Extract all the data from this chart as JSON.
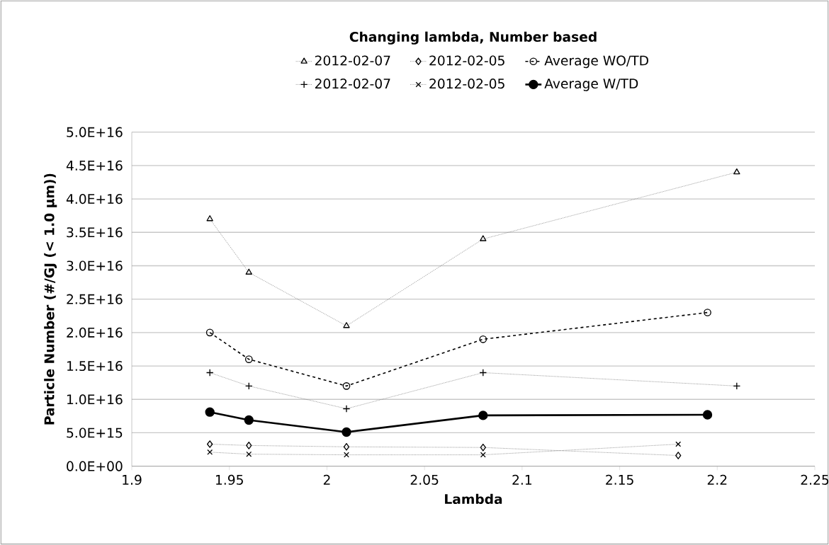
{
  "chart_data": {
    "type": "line",
    "title": "Changing lambda, Number based",
    "xlabel": "Lambda",
    "ylabel": "Particle Number (#/GJ (< 1.0 µm))",
    "xlim": [
      1.9,
      2.25
    ],
    "xticks": [
      1.9,
      1.95,
      2,
      2.05,
      2.1,
      2.15,
      2.2,
      2.25
    ],
    "ylim": [
      0,
      5e+16
    ],
    "yticks": [
      {
        "value": 0,
        "label": "0.0E+00"
      },
      {
        "value": 5000000000000000.0,
        "label": "5.0E+15"
      },
      {
        "value": 1e+16,
        "label": "1.0E+16"
      },
      {
        "value": 1.5e+16,
        "label": "1.5E+16"
      },
      {
        "value": 2e+16,
        "label": "2.0E+16"
      },
      {
        "value": 2.5e+16,
        "label": "2.5E+16"
      },
      {
        "value": 3e+16,
        "label": "3.0E+16"
      },
      {
        "value": 3.5e+16,
        "label": "3.5E+16"
      },
      {
        "value": 4e+16,
        "label": "4.0E+16"
      },
      {
        "value": 4.5e+16,
        "label": "4.5E+16"
      },
      {
        "value": 5e+16,
        "label": "5.0E+16"
      }
    ],
    "grid": "y",
    "legend": "top",
    "series": [
      {
        "name": "2012-02-07",
        "color": "#595959",
        "marker": "triangle",
        "line_style": "dotted",
        "x": [
          1.94,
          1.96,
          2.01,
          2.08,
          2.21
        ],
        "values": [
          3.7e+16,
          2.9e+16,
          2.1e+16,
          3.4e+16,
          4.4e+16
        ]
      },
      {
        "name": "2012-02-05",
        "color": "#595959",
        "marker": "diamond",
        "line_style": "dotted",
        "x": [
          1.94,
          1.96,
          2.01,
          2.08,
          2.18
        ],
        "values": [
          3300000000000000.0,
          3100000000000000.0,
          2900000000000000.0,
          2800000000000000.0,
          1600000000000000.0
        ]
      },
      {
        "name": "Average WO/TD",
        "color": "#000000",
        "marker": "circle",
        "line_style": "dashed",
        "x": [
          1.94,
          1.96,
          2.01,
          2.08,
          2.195
        ],
        "values": [
          2e+16,
          1.6e+16,
          1.2e+16,
          1.9e+16,
          2.3e+16
        ]
      },
      {
        "name": "2012-02-07",
        "color": "#595959",
        "marker": "plus",
        "line_style": "dotted",
        "x": [
          1.94,
          1.96,
          2.01,
          2.08,
          2.21
        ],
        "values": [
          1.4e+16,
          1.2e+16,
          8600000000000000.0,
          1.4e+16,
          1.2e+16
        ]
      },
      {
        "name": "2012-02-05",
        "color": "#595959",
        "marker": "cross",
        "line_style": "dotted",
        "x": [
          1.94,
          1.96,
          2.01,
          2.08,
          2.18
        ],
        "values": [
          2100000000000000.0,
          1800000000000000.0,
          1700000000000000.0,
          1700000000000000.0,
          3300000000000000.0
        ]
      },
      {
        "name": "Average W/TD",
        "color": "#000000",
        "marker": "circle",
        "line_style": "solid",
        "x": [
          1.94,
          1.96,
          2.01,
          2.08,
          2.195
        ],
        "values": [
          8100000000000000.0,
          6900000000000000.0,
          5100000000000000.0,
          7600000000000000.0,
          7700000000000000.0
        ]
      }
    ]
  }
}
